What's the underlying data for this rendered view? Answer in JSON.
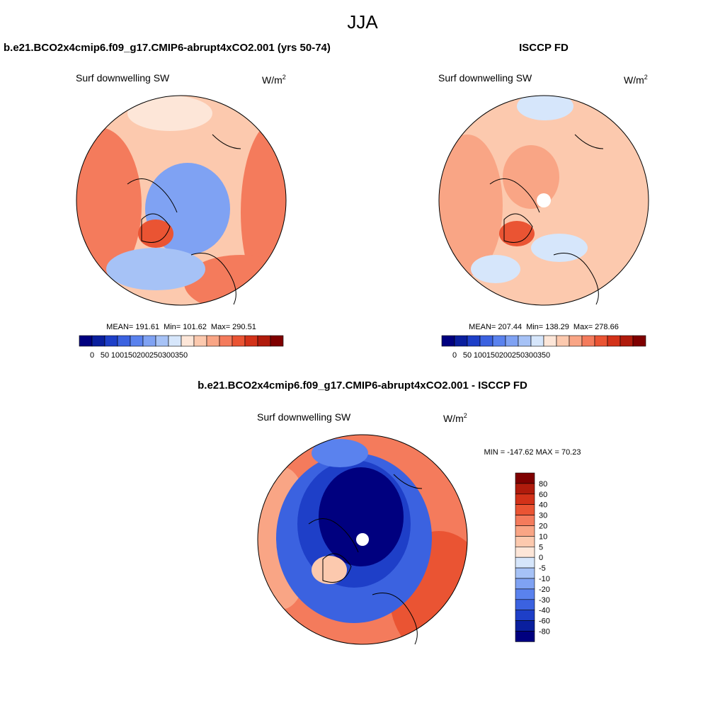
{
  "title": "JJA",
  "panels": [
    {
      "case": "b.e21.BCO2x4cmip6.f09_g17.CMIP6-abrupt4xCO2.001 (yrs 50-74)",
      "field": "Surf downwelling SW",
      "units": "W/m",
      "units_exponent": "2",
      "stats": [
        "MEAN= 191.61",
        "Min= 101.62",
        "Max= 290.51"
      ]
    },
    {
      "case": "ISCCP FD",
      "field": "Surf downwelling SW",
      "units": "W/m",
      "units_exponent": "2",
      "stats": [
        "MEAN= 207.44",
        "Min= 138.29",
        "Max= 278.66"
      ]
    },
    {
      "case": "b.e21.BCO2x4cmip6.f09_g17.CMIP6-abrupt4xCO2.001 - ISCCP FD",
      "field": "Surf downwelling SW",
      "units": "W/m",
      "units_exponent": "2",
      "stats": [
        "MIN = -147.62 MAX =  70.23"
      ]
    }
  ],
  "colorbars": [
    {
      "labels": [
        "0",
        "50",
        "100",
        "150",
        "200",
        "250",
        "300",
        "350"
      ],
      "colors": [
        "#00007f",
        "#0a1f9e",
        "#1e3fc8",
        "#3b62e0",
        "#5a82ee",
        "#7fa2f3",
        "#a6c2f6",
        "#d6e6fb",
        "#fde6d8",
        "#fcc9ae",
        "#f9a585",
        "#f47b5c",
        "#ea5433",
        "#d33219",
        "#b01b0c",
        "#7f0000"
      ]
    },
    {
      "labels": [
        "0",
        "50",
        "100",
        "150",
        "200",
        "250",
        "300",
        "350"
      ],
      "colors": [
        "#00007f",
        "#0a1f9e",
        "#1e3fc8",
        "#3b62e0",
        "#5a82ee",
        "#7fa2f3",
        "#a6c2f6",
        "#d6e6fb",
        "#fde6d8",
        "#fcc9ae",
        "#f9a585",
        "#f47b5c",
        "#ea5433",
        "#d33219",
        "#b01b0c",
        "#7f0000"
      ]
    },
    {
      "labels": [
        "80",
        "60",
        "40",
        "30",
        "20",
        "10",
        "5",
        "0",
        "-5",
        "-10",
        "-20",
        "-30",
        "-40",
        "-60",
        "-80"
      ],
      "colors": [
        "#7f0000",
        "#b01b0c",
        "#d33219",
        "#ea5433",
        "#f47b5c",
        "#f9a585",
        "#fcc9ae",
        "#fde6d8",
        "#d6e6fb",
        "#a6c2f6",
        "#7fa2f3",
        "#5a82ee",
        "#3b62e0",
        "#1e3fc8",
        "#0a1f9e",
        "#00007f"
      ]
    }
  ]
}
